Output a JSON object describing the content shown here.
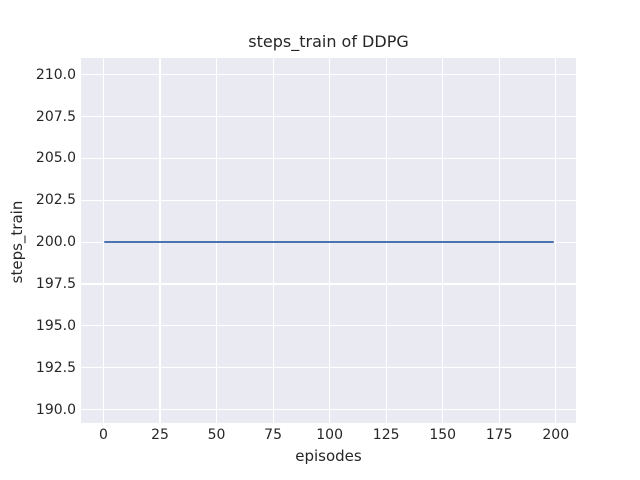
{
  "chart_data": {
    "type": "line",
    "title": "steps_train of DDPG",
    "xlabel": "episodes",
    "ylabel": "steps_train",
    "xlim": [
      -9.95,
      208.95
    ],
    "ylim": [
      189.2,
      211.0
    ],
    "xtick_values": [
      0,
      25,
      50,
      75,
      100,
      125,
      150,
      175,
      200
    ],
    "xtick_labels": [
      "0",
      "25",
      "50",
      "75",
      "100",
      "125",
      "150",
      "175",
      "200"
    ],
    "ytick_values": [
      190.0,
      192.5,
      195.0,
      197.5,
      200.0,
      202.5,
      205.0,
      207.5,
      210.0
    ],
    "ytick_labels": [
      "190.0",
      "192.5",
      "195.0",
      "197.5",
      "200.0",
      "202.5",
      "205.0",
      "207.5",
      "210.0"
    ],
    "grid": true,
    "legend": false,
    "series": [
      {
        "name": "steps_train",
        "color": "#4C72B0",
        "x": [
          0,
          199
        ],
        "y": [
          200,
          200
        ],
        "description": "Constant horizontal line: steps_train = 200 for every episode from 0 to 199"
      }
    ],
    "style": {
      "figure_background": "#FFFFFF",
      "plot_background": "#EAEAF2",
      "grid_color": "#FFFFFF",
      "text_color": "#262626",
      "line_color": "#4C72B0"
    }
  }
}
